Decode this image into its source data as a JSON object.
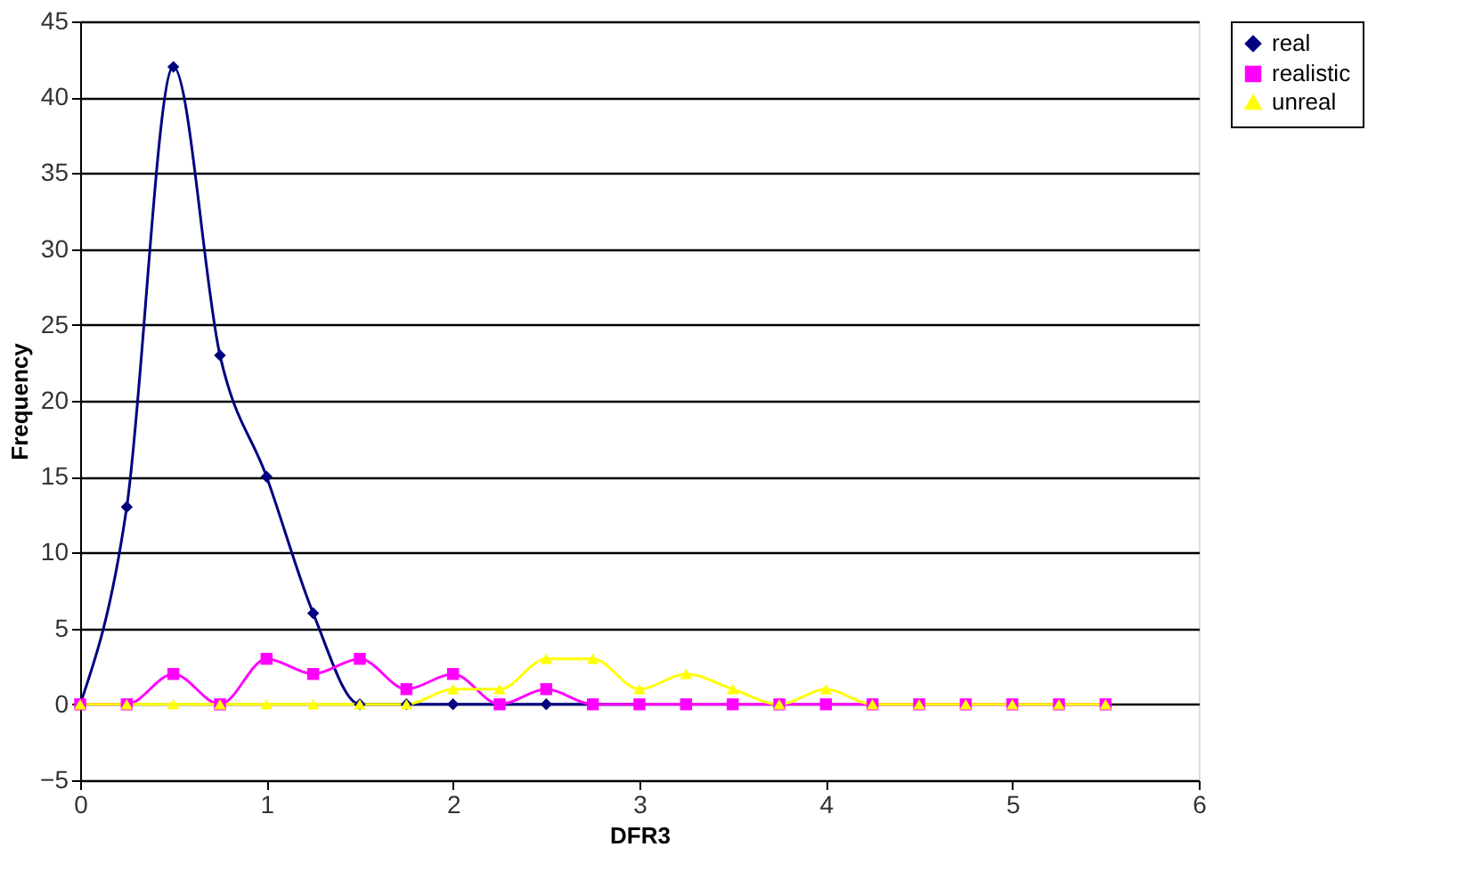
{
  "chart_data": {
    "type": "line",
    "xlabel": "DFR3",
    "ylabel": "Frequency",
    "x": [
      0,
      0.25,
      0.5,
      0.75,
      1,
      1.25,
      1.5,
      1.75,
      2,
      2.25,
      2.5,
      2.75,
      3,
      3.25,
      3.5,
      3.75,
      4,
      4.25,
      4.5,
      4.75,
      5,
      5.25,
      5.5
    ],
    "series": [
      {
        "name": "real",
        "color": "#000080",
        "marker": "diamond",
        "values": [
          0,
          13,
          42,
          23,
          15,
          6,
          0,
          0,
          0,
          0,
          0,
          0,
          0,
          null,
          null,
          null,
          null,
          null,
          null,
          null,
          null,
          null,
          null
        ]
      },
      {
        "name": "realistic",
        "color": "#ff00ff",
        "marker": "square",
        "values": [
          0,
          0,
          2,
          0,
          3,
          2,
          3,
          1,
          2,
          0,
          1,
          0,
          0,
          0,
          0,
          0,
          0,
          0,
          0,
          0,
          0,
          0,
          0
        ]
      },
      {
        "name": "unreal",
        "color": "#ffff00",
        "marker": "triangle",
        "values": [
          0,
          0,
          0,
          0,
          0,
          0,
          0,
          0,
          1,
          1,
          3,
          3,
          1,
          2,
          1,
          0,
          1,
          0,
          0,
          0,
          0,
          0,
          0
        ]
      }
    ],
    "xlim": [
      0,
      6
    ],
    "xticks": [
      0,
      1,
      2,
      3,
      4,
      5,
      6
    ],
    "ylim": [
      -5,
      45
    ],
    "yticks": [
      -5,
      0,
      5,
      10,
      15,
      20,
      25,
      30,
      35,
      40,
      45
    ],
    "grid": "y",
    "legend": "right",
    "line_style": "solid"
  }
}
